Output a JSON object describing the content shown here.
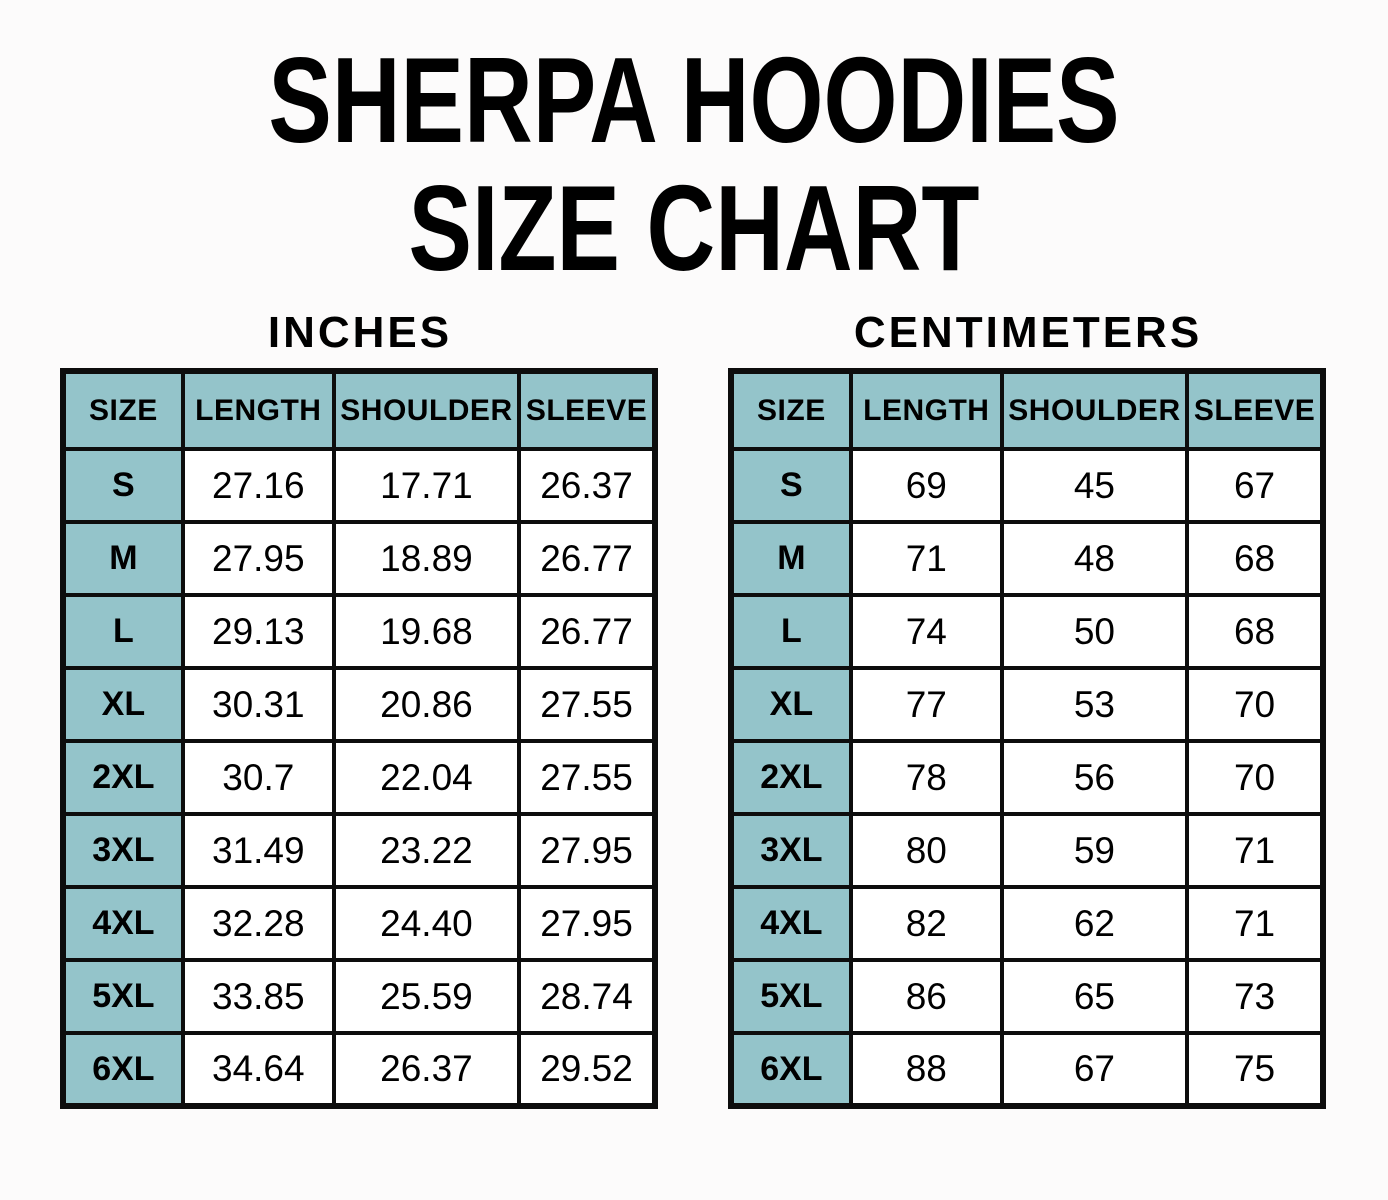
{
  "page": {
    "title_line1": "SHERPA HOODIES",
    "title_line2": "SIZE CHART"
  },
  "chart_data": [
    {
      "type": "table",
      "title": "INCHES",
      "columns": [
        "SIZE",
        "LENGTH",
        "SHOULDER",
        "SLEEVE"
      ],
      "rows": [
        {
          "size": "S",
          "length": "27.16",
          "shoulder": "17.71",
          "sleeve": "26.37"
        },
        {
          "size": "M",
          "length": "27.95",
          "shoulder": "18.89",
          "sleeve": "26.77"
        },
        {
          "size": "L",
          "length": "29.13",
          "shoulder": "19.68",
          "sleeve": "26.77"
        },
        {
          "size": "XL",
          "length": "30.31",
          "shoulder": "20.86",
          "sleeve": "27.55"
        },
        {
          "size": "2XL",
          "length": "30.7",
          "shoulder": "22.04",
          "sleeve": "27.55"
        },
        {
          "size": "3XL",
          "length": "31.49",
          "shoulder": "23.22",
          "sleeve": "27.95"
        },
        {
          "size": "4XL",
          "length": "32.28",
          "shoulder": "24.40",
          "sleeve": "27.95"
        },
        {
          "size": "5XL",
          "length": "33.85",
          "shoulder": "25.59",
          "sleeve": "28.74"
        },
        {
          "size": "6XL",
          "length": "34.64",
          "shoulder": "26.37",
          "sleeve": "29.52"
        }
      ]
    },
    {
      "type": "table",
      "title": "CENTIMETERS",
      "columns": [
        "SIZE",
        "LENGTH",
        "SHOULDER",
        "SLEEVE"
      ],
      "rows": [
        {
          "size": "S",
          "length": "69",
          "shoulder": "45",
          "sleeve": "67"
        },
        {
          "size": "M",
          "length": "71",
          "shoulder": "48",
          "sleeve": "68"
        },
        {
          "size": "L",
          "length": "74",
          "shoulder": "50",
          "sleeve": "68"
        },
        {
          "size": "XL",
          "length": "77",
          "shoulder": "53",
          "sleeve": "70"
        },
        {
          "size": "2XL",
          "length": "78",
          "shoulder": "56",
          "sleeve": "70"
        },
        {
          "size": "3XL",
          "length": "80",
          "shoulder": "59",
          "sleeve": "71"
        },
        {
          "size": "4XL",
          "length": "82",
          "shoulder": "62",
          "sleeve": "71"
        },
        {
          "size": "5XL",
          "length": "86",
          "shoulder": "65",
          "sleeve": "73"
        },
        {
          "size": "6XL",
          "length": "88",
          "shoulder": "67",
          "sleeve": "75"
        }
      ]
    }
  ],
  "colors": {
    "header_cell_bg": "#94c4ca",
    "table_border": "#0d0d0d",
    "text": "#000000",
    "page_bg": "#fcfbfb"
  }
}
